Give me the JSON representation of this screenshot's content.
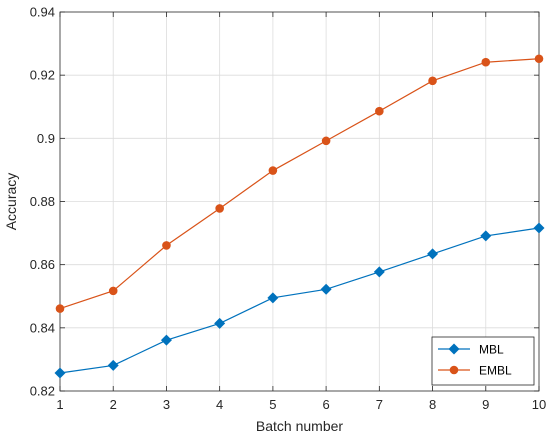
{
  "chart_data": {
    "type": "line",
    "title": "",
    "xlabel": "Batch number",
    "ylabel": "Accuracy",
    "x": [
      1,
      2,
      3,
      4,
      5,
      6,
      7,
      8,
      9,
      10
    ],
    "xlim": [
      1,
      10
    ],
    "ylim": [
      0.82,
      0.94
    ],
    "xticks": [
      "1",
      "2",
      "3",
      "4",
      "5",
      "6",
      "7",
      "8",
      "9",
      "10"
    ],
    "yticks": [
      "0.82",
      "0.84",
      "0.86",
      "0.88",
      "0.9",
      "0.92",
      "0.94"
    ],
    "grid": true,
    "legend_position": "bottom-right",
    "series": [
      {
        "name": "MBL",
        "color": "#0072BD",
        "marker": "diamond",
        "values": [
          0.8257,
          0.8281,
          0.8361,
          0.8414,
          0.8495,
          0.8522,
          0.8577,
          0.8634,
          0.8691,
          0.8716
        ]
      },
      {
        "name": "EMBL",
        "color": "#D95319",
        "marker": "circle",
        "values": [
          0.8461,
          0.8517,
          0.8661,
          0.8778,
          0.8898,
          0.8992,
          0.9086,
          0.9182,
          0.9241,
          0.9252
        ]
      }
    ]
  }
}
